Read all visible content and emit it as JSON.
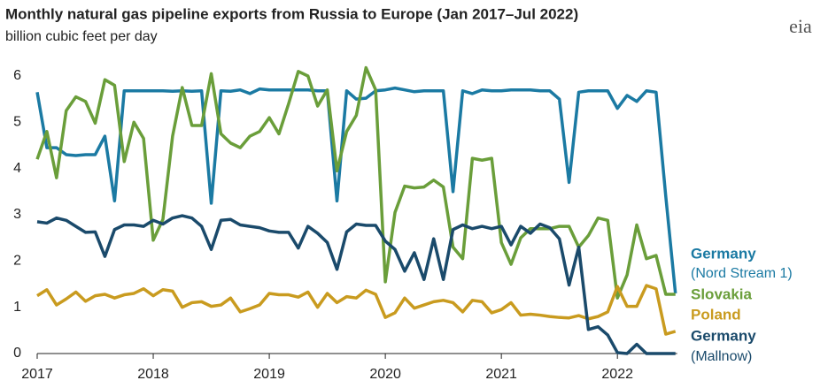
{
  "chart_data": {
    "type": "line",
    "title": "Monthly natural gas pipeline exports from Russia to Europe (Jan 2017–Jul 2022)",
    "subtitle": "billion cubic feet per day",
    "logo": "eia",
    "categories": [
      "2017",
      null,
      null,
      null,
      null,
      null,
      null,
      null,
      null,
      null,
      null,
      null,
      "2018",
      null,
      null,
      null,
      null,
      null,
      null,
      null,
      null,
      null,
      null,
      null,
      "2019",
      null,
      null,
      null,
      null,
      null,
      null,
      null,
      null,
      null,
      null,
      null,
      "2020",
      null,
      null,
      null,
      null,
      null,
      null,
      null,
      null,
      null,
      null,
      null,
      "2021",
      null,
      null,
      null,
      null,
      null,
      null,
      null,
      null,
      null,
      null,
      null,
      "2022",
      null,
      null,
      null,
      null,
      null,
      null
    ],
    "ylim": [
      0,
      6.2
    ],
    "yticks": [
      0,
      1,
      2,
      3,
      4,
      5,
      6
    ],
    "grid": false,
    "series": [
      {
        "name": "Germany",
        "note": "(Nord Stream 1)",
        "color": "#1b7aa3",
        "values": [
          5.65,
          4.45,
          4.45,
          4.3,
          4.28,
          4.3,
          4.3,
          4.7,
          3.3,
          5.68,
          5.68,
          5.68,
          5.68,
          5.68,
          5.67,
          5.68,
          5.67,
          5.68,
          3.25,
          5.68,
          5.67,
          5.7,
          5.62,
          5.72,
          5.7,
          5.7,
          5.7,
          5.7,
          5.7,
          5.68,
          5.68,
          3.3,
          5.68,
          5.5,
          5.52,
          5.68,
          5.7,
          5.74,
          5.7,
          5.66,
          5.68,
          5.68,
          5.68,
          3.5,
          5.68,
          5.62,
          5.7,
          5.68,
          5.68,
          5.7,
          5.7,
          5.7,
          5.68,
          5.68,
          5.5,
          3.7,
          5.65,
          5.68,
          5.68,
          5.68,
          5.3,
          5.58,
          5.45,
          5.68,
          5.65,
          3.4,
          1.3
        ]
      },
      {
        "name": "Slovakia",
        "color": "#6a9e3a",
        "values": [
          4.2,
          4.8,
          3.8,
          5.25,
          5.55,
          5.45,
          4.98,
          5.92,
          5.8,
          4.15,
          5.0,
          4.65,
          2.45,
          2.9,
          4.7,
          5.75,
          4.93,
          4.93,
          6.05,
          4.75,
          4.55,
          4.45,
          4.7,
          4.8,
          5.1,
          4.75,
          5.4,
          6.1,
          6.0,
          5.35,
          5.7,
          3.95,
          4.8,
          5.15,
          6.18,
          5.7,
          1.55,
          3.05,
          3.62,
          3.58,
          3.6,
          3.75,
          3.6,
          2.3,
          2.05,
          4.22,
          4.18,
          4.22,
          2.4,
          1.93,
          2.5,
          2.7,
          2.7,
          2.7,
          2.75,
          2.75,
          2.3,
          2.55,
          2.93,
          2.88,
          1.2,
          1.7,
          2.78,
          2.05,
          2.12,
          1.28,
          1.28
        ]
      },
      {
        "name": "Poland",
        "color": "#c99b1f",
        "values": [
          1.25,
          1.38,
          1.05,
          1.18,
          1.33,
          1.13,
          1.25,
          1.28,
          1.2,
          1.27,
          1.3,
          1.4,
          1.25,
          1.38,
          1.35,
          1.0,
          1.1,
          1.12,
          1.02,
          1.05,
          1.2,
          0.9,
          0.97,
          1.05,
          1.3,
          1.27,
          1.27,
          1.22,
          1.33,
          1.0,
          1.3,
          1.1,
          1.23,
          1.2,
          1.37,
          1.28,
          0.78,
          0.88,
          1.2,
          0.98,
          1.05,
          1.12,
          1.15,
          1.1,
          0.9,
          1.15,
          1.12,
          0.88,
          0.95,
          1.1,
          0.83,
          0.85,
          0.83,
          0.8,
          0.78,
          0.77,
          0.82,
          0.75,
          0.8,
          0.9,
          1.45,
          1.02,
          1.02,
          1.47,
          1.4,
          0.42,
          0.48
        ]
      },
      {
        "name": "Germany",
        "note": "(Mallnow)",
        "color": "#1a4a6b",
        "values": [
          2.85,
          2.82,
          2.93,
          2.88,
          2.75,
          2.62,
          2.63,
          2.1,
          2.68,
          2.78,
          2.78,
          2.75,
          2.88,
          2.8,
          2.93,
          2.98,
          2.93,
          2.75,
          2.25,
          2.88,
          2.9,
          2.78,
          2.75,
          2.72,
          2.65,
          2.62,
          2.62,
          2.28,
          2.75,
          2.6,
          2.4,
          1.82,
          2.63,
          2.8,
          2.77,
          2.77,
          2.43,
          2.25,
          1.78,
          2.18,
          1.6,
          2.48,
          1.6,
          2.68,
          2.78,
          2.7,
          2.75,
          2.7,
          2.75,
          2.35,
          2.75,
          2.6,
          2.8,
          2.72,
          2.48,
          1.48,
          2.3,
          0.52,
          0.58,
          0.4,
          0.02,
          0,
          0.2,
          0,
          0,
          0,
          0
        ]
      }
    ]
  }
}
